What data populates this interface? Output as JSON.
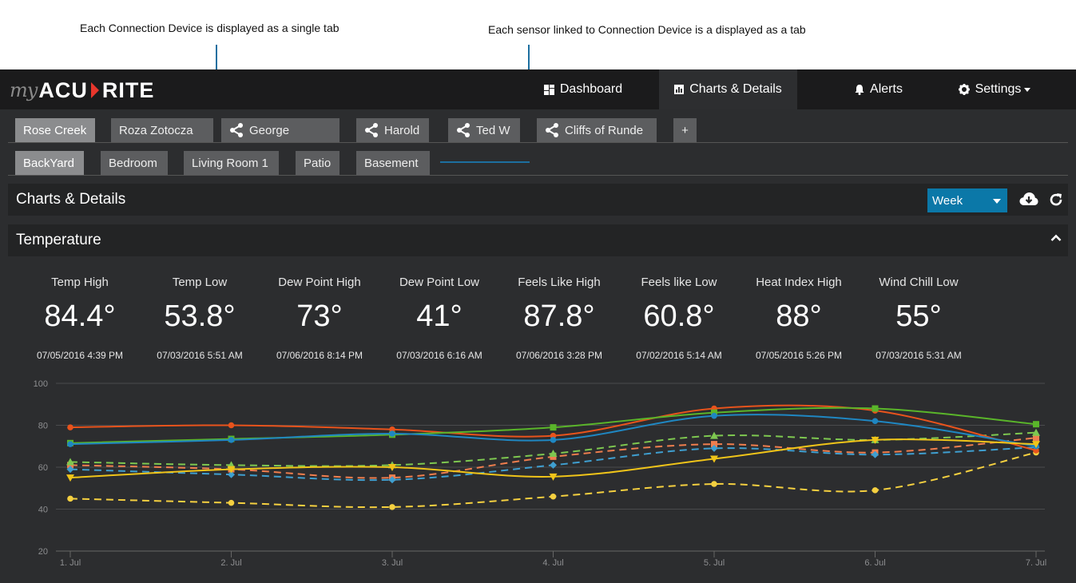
{
  "annotations": {
    "left": "Each Connection Device is displayed as a single tab",
    "right": "Each sensor linked to Connection Device is a displayed as a tab"
  },
  "logo": {
    "prefix": "my",
    "brand_left": "ACU",
    "brand_right": "RITE"
  },
  "nav": {
    "dashboard": "Dashboard",
    "charts": "Charts & Details",
    "alerts": "Alerts",
    "settings": "Settings"
  },
  "devices": [
    {
      "label": "Rose Creek",
      "shared": false,
      "active": true
    },
    {
      "label": "Roza Zotocza",
      "shared": false,
      "active": false
    },
    {
      "label": "George",
      "shared": true,
      "active": false
    },
    {
      "label": "Harold",
      "shared": true,
      "active": false
    },
    {
      "label": "Ted W",
      "shared": true,
      "active": false
    },
    {
      "label": "Cliffs of Runde",
      "shared": true,
      "active": false
    }
  ],
  "add_device_label": "+",
  "sensors": [
    {
      "label": "BackYard",
      "active": true
    },
    {
      "label": "Bedroom",
      "active": false
    },
    {
      "label": "Living Room 1",
      "active": false
    },
    {
      "label": "Patio",
      "active": false
    },
    {
      "label": "Basement",
      "active": false
    }
  ],
  "page_title": "Charts & Details",
  "range": {
    "selected": "Week"
  },
  "section_title": "Temperature",
  "stats": [
    {
      "label": "Temp High",
      "value": "84.4°",
      "time": "07/05/2016 4:39 PM"
    },
    {
      "label": "Temp Low",
      "value": "53.8°",
      "time": "07/03/2016 5:51 AM"
    },
    {
      "label": "Dew Point High",
      "value": "73°",
      "time": "07/06/2016 8:14 PM"
    },
    {
      "label": "Dew Point Low",
      "value": "41°",
      "time": "07/03/2016 6:16 AM"
    },
    {
      "label": "Feels Like High",
      "value": "87.8°",
      "time": "07/06/2016 3:28 PM"
    },
    {
      "label": "Feels like Low",
      "value": "60.8°",
      "time": "07/02/2016 5:14 AM"
    },
    {
      "label": "Heat Index High",
      "value": "88°",
      "time": "07/05/2016 5:26 PM"
    },
    {
      "label": "Wind Chill Low",
      "value": "55°",
      "time": "07/03/2016 5:31 AM"
    }
  ],
  "colors": {
    "orange_red": "#e8531c",
    "green": "#5ab52a",
    "blue": "#1f87c2",
    "yellow": "#f0c419",
    "salmon": "#f07e4e",
    "light_green": "#7ec850",
    "light_blue": "#3f9fd0",
    "pale_yellow": "#f5d040",
    "accent": "#0b78a8"
  },
  "chart_data": {
    "type": "line",
    "categories": [
      "1. Jul",
      "2. Jul",
      "3. Jul",
      "4. Jul",
      "5. Jul",
      "6. Jul",
      "7. Jul"
    ],
    "yticks": [
      20,
      40,
      60,
      80,
      100
    ],
    "ylim": [
      20,
      100
    ],
    "grid": true,
    "series": [
      {
        "color": "#e8531c",
        "dash": false,
        "marker": "circle",
        "values": [
          79,
          80,
          78,
          75,
          88,
          87,
          68
        ]
      },
      {
        "color": "#5ab52a",
        "dash": false,
        "marker": "square",
        "values": [
          71.5,
          73.5,
          75.5,
          79,
          86,
          88,
          80.5
        ]
      },
      {
        "color": "#1f87c2",
        "dash": false,
        "marker": "circle",
        "values": [
          71,
          73,
          76,
          73,
          84.5,
          82,
          70
        ]
      },
      {
        "color": "#f0c419",
        "dash": false,
        "marker": "triangle-down",
        "values": [
          55,
          59,
          60,
          55.5,
          64,
          73,
          71
        ]
      },
      {
        "color": "#f07e4e",
        "dash": true,
        "marker": "square",
        "values": [
          61,
          59,
          55,
          65,
          71,
          67,
          74
        ]
      },
      {
        "color": "#7ec850",
        "dash": true,
        "marker": "triangle",
        "values": [
          62.5,
          61,
          61,
          66.5,
          75,
          73,
          76.5
        ]
      },
      {
        "color": "#3f9fd0",
        "dash": true,
        "marker": "diamond",
        "values": [
          59,
          56.5,
          54,
          61,
          69,
          66,
          69.5
        ]
      },
      {
        "color": "#f5d040",
        "dash": true,
        "marker": "circle",
        "values": [
          45,
          43,
          41,
          46,
          52,
          49,
          67
        ]
      }
    ]
  }
}
